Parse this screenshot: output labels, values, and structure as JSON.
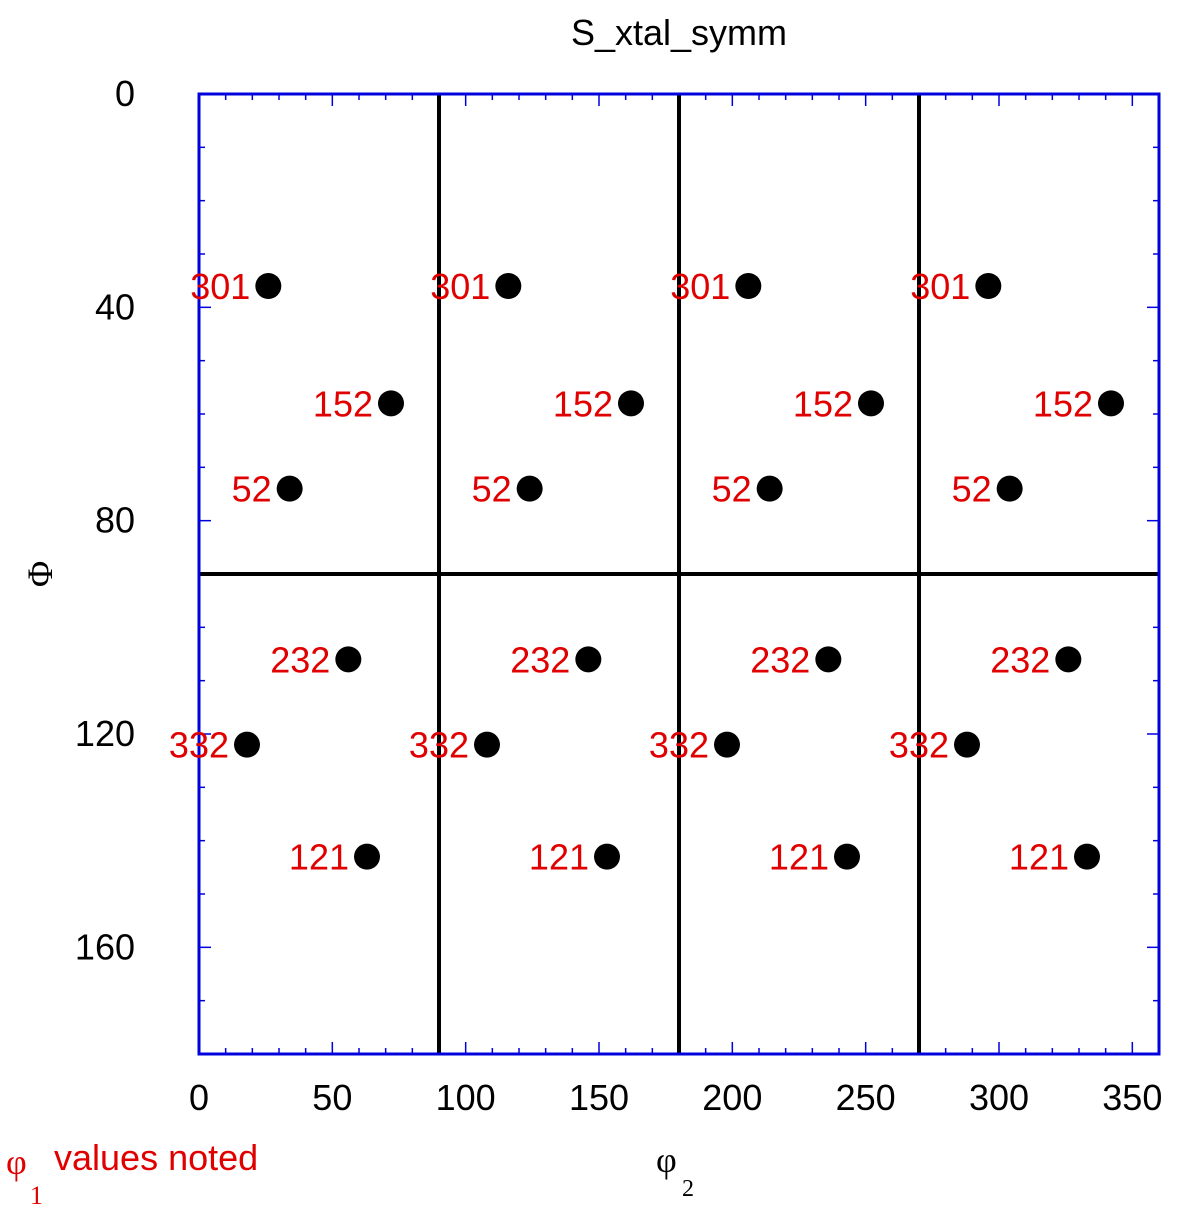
{
  "chart_data": {
    "type": "scatter",
    "title": "S_xtal_symm",
    "xlabel": "φ",
    "xlabel_sub": "2",
    "ylabel": "Φ",
    "xlim": [
      0,
      360
    ],
    "ylim": [
      0,
      180
    ],
    "y_inverted": true,
    "x_ticks": [
      0,
      50,
      100,
      150,
      200,
      250,
      300,
      350
    ],
    "y_ticks": [
      0,
      40,
      80,
      120,
      160
    ],
    "grid": false,
    "divider_lines_x": [
      90,
      180,
      270
    ],
    "divider_lines_y": [
      90
    ],
    "note": {
      "symbol": "φ",
      "subscript": "1",
      "text": " values noted"
    },
    "colors": {
      "frame": "#0000dd",
      "points": "#000000",
      "labels": "#e00000",
      "lines": "#000000"
    },
    "points": [
      {
        "x": 26,
        "y": 36,
        "label": "301"
      },
      {
        "x": 116,
        "y": 36,
        "label": "301"
      },
      {
        "x": 206,
        "y": 36,
        "label": "301"
      },
      {
        "x": 296,
        "y": 36,
        "label": "301"
      },
      {
        "x": 72,
        "y": 58,
        "label": "152"
      },
      {
        "x": 162,
        "y": 58,
        "label": "152"
      },
      {
        "x": 252,
        "y": 58,
        "label": "152"
      },
      {
        "x": 342,
        "y": 58,
        "label": "152"
      },
      {
        "x": 34,
        "y": 74,
        "label": "52"
      },
      {
        "x": 124,
        "y": 74,
        "label": "52"
      },
      {
        "x": 214,
        "y": 74,
        "label": "52"
      },
      {
        "x": 304,
        "y": 74,
        "label": "52"
      },
      {
        "x": 56,
        "y": 106,
        "label": "232"
      },
      {
        "x": 146,
        "y": 106,
        "label": "232"
      },
      {
        "x": 236,
        "y": 106,
        "label": "232"
      },
      {
        "x": 326,
        "y": 106,
        "label": "232"
      },
      {
        "x": 18,
        "y": 122,
        "label": "332"
      },
      {
        "x": 108,
        "y": 122,
        "label": "332"
      },
      {
        "x": 198,
        "y": 122,
        "label": "332"
      },
      {
        "x": 288,
        "y": 122,
        "label": "332"
      },
      {
        "x": 63,
        "y": 143,
        "label": "121"
      },
      {
        "x": 153,
        "y": 143,
        "label": "121"
      },
      {
        "x": 243,
        "y": 143,
        "label": "121"
      },
      {
        "x": 333,
        "y": 143,
        "label": "121"
      }
    ]
  }
}
